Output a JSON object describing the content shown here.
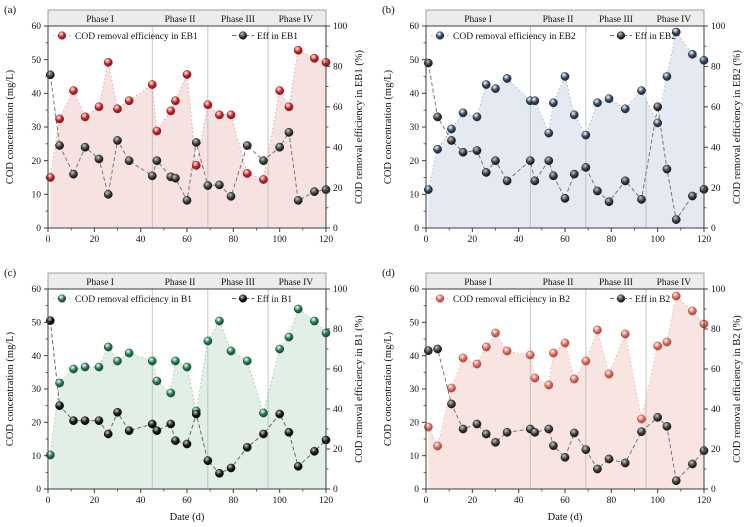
{
  "figure": {
    "xlabel": "Date (d)",
    "phase_labels": [
      "Phase I",
      "Phase II",
      "Phase III",
      "Phase IV"
    ],
    "phase_boundaries": [
      45,
      69,
      95
    ],
    "phase_label_centers": [
      22.5,
      57,
      82,
      107
    ],
    "band_fill": "#ececec",
    "band_edge": "#8a8a8a"
  },
  "chart_data": [
    {
      "type": "scatter-line-area",
      "panel": "(a)",
      "legend": [
        "COD removal efficiency in EB1",
        "Eff in EB1"
      ],
      "ylabel_left": "COD concentration (mg/L)",
      "ylabel_right": "COD removal efficiency in EB1 (%)",
      "xlabel": "",
      "show_xlabel": false,
      "xlim": [
        0,
        120
      ],
      "ylim_left": [
        0,
        60
      ],
      "ylim_right": [
        0,
        100
      ],
      "x_ticks": [
        0,
        20,
        40,
        60,
        80,
        100,
        120
      ],
      "y_left_ticks": [
        0,
        10,
        20,
        30,
        40,
        50,
        60
      ],
      "y_right_ticks": [
        0,
        20,
        40,
        60,
        80,
        100
      ],
      "x": [
        1,
        5,
        11,
        16,
        22,
        26,
        30,
        35,
        45,
        47,
        53,
        55,
        60,
        64,
        69,
        74,
        79,
        86,
        93,
        100,
        104,
        108,
        115,
        120
      ],
      "removal_efficiency_pct": [
        25,
        54,
        68,
        55,
        60,
        82,
        59,
        63,
        71,
        48,
        58,
        63,
        76,
        31,
        61,
        56,
        56,
        27,
        24,
        68,
        60,
        88,
        84,
        82
      ],
      "effluent_mg_L": [
        45.5,
        24.5,
        16,
        24,
        20.5,
        10,
        26,
        20,
        15.5,
        20,
        15.2,
        14.8,
        8.2,
        25.4,
        12.6,
        12.8,
        9.4,
        24.5,
        20,
        24,
        28.4,
        8.2,
        10.8,
        11.4
      ],
      "colors": {
        "marker": "#c92121",
        "marker_edge": "#801010",
        "line": "#dfabab",
        "fill": "#f7e2e2",
        "eff_marker": "#3f3f3f",
        "eff_line": "#6a6a6a"
      }
    },
    {
      "type": "scatter-line-area",
      "panel": "(b)",
      "legend": [
        "COD removal efficiency in EB2",
        "Eff in EB2"
      ],
      "ylabel_left": "COD concentration (mg/L)",
      "ylabel_right": "COD removal efficiency in EB2 (%)",
      "xlabel": "",
      "show_xlabel": false,
      "xlim": [
        0,
        120
      ],
      "ylim_left": [
        0,
        60
      ],
      "ylim_right": [
        0,
        100
      ],
      "x_ticks": [
        0,
        20,
        40,
        60,
        80,
        100,
        120
      ],
      "y_left_ticks": [
        0,
        10,
        20,
        30,
        40,
        50,
        60
      ],
      "y_right_ticks": [
        0,
        20,
        40,
        60,
        80,
        100
      ],
      "x": [
        1,
        5,
        11,
        16,
        22,
        26,
        30,
        35,
        45,
        47,
        53,
        55,
        60,
        64,
        69,
        74,
        79,
        86,
        93,
        100,
        104,
        108,
        115,
        120
      ],
      "removal_efficiency_pct": [
        19,
        39,
        49,
        57,
        55,
        71,
        69,
        74,
        63,
        63,
        47,
        62,
        75,
        56,
        46,
        62,
        64,
        59,
        68,
        52,
        75,
        97,
        86,
        83
      ],
      "effluent_mg_L": [
        49,
        33,
        26,
        22.5,
        23,
        16.5,
        20,
        14,
        20,
        14,
        20,
        15.5,
        8.8,
        16,
        18,
        11,
        7.8,
        14,
        8.5,
        36,
        17.5,
        2.5,
        9.5,
        11.5
      ],
      "colors": {
        "marker": "#31475f",
        "marker_edge": "#17222e",
        "line": "#aab8cd",
        "fill": "#e4e9f2",
        "eff_marker": "#3f3f3f",
        "eff_line": "#6a6a6a"
      }
    },
    {
      "type": "scatter-line-area",
      "panel": "(c)",
      "legend": [
        "COD removal efficiency in B1",
        "Eff in B1"
      ],
      "ylabel_left": "COD concentration (mg/L)",
      "ylabel_right": "COD removal efficiency in B1 (%)",
      "xlabel": "Date (d)",
      "show_xlabel": true,
      "xlim": [
        0,
        120
      ],
      "ylim_left": [
        0,
        60
      ],
      "ylim_right": [
        0,
        100
      ],
      "x_ticks": [
        0,
        20,
        40,
        60,
        80,
        100,
        120
      ],
      "y_left_ticks": [
        0,
        10,
        20,
        30,
        40,
        50,
        60
      ],
      "y_right_ticks": [
        0,
        20,
        40,
        60,
        80,
        100
      ],
      "x": [
        1,
        5,
        11,
        16,
        22,
        26,
        30,
        35,
        45,
        47,
        53,
        55,
        60,
        64,
        69,
        74,
        79,
        86,
        93,
        100,
        104,
        108,
        115,
        120
      ],
      "removal_efficiency_pct": [
        17,
        53,
        60,
        61,
        61,
        71,
        64,
        68,
        64,
        54,
        48,
        64,
        61,
        39,
        74,
        84,
        69,
        64,
        38,
        70,
        76,
        90,
        84,
        78
      ],
      "effluent_mg_L": [
        50.5,
        25,
        20.5,
        20.5,
        20.5,
        16.5,
        23,
        17.5,
        19.5,
        17.5,
        19.5,
        14.5,
        13.5,
        22.5,
        8.5,
        4.7,
        6.3,
        12.5,
        16.5,
        22.5,
        17,
        6.8,
        11.3,
        14.7
      ],
      "colors": {
        "marker": "#20794e",
        "marker_edge": "#0e4328",
        "line": "#9cc7ad",
        "fill": "#e1efe6",
        "eff_marker": "#141414",
        "eff_line": "#5a5a5a"
      }
    },
    {
      "type": "scatter-line-area",
      "panel": "(d)",
      "legend": [
        "COD removal efficiency in B2",
        "Eff in B2"
      ],
      "ylabel_left": "COD concentration (mg/L)",
      "ylabel_right": "COD removal efficiency in B2 (%)",
      "xlabel": "Date (d)",
      "show_xlabel": true,
      "xlim": [
        0,
        120
      ],
      "ylim_left": [
        0,
        60
      ],
      "ylim_right": [
        0,
        100
      ],
      "x_ticks": [
        0,
        20,
        40,
        60,
        80,
        100,
        120
      ],
      "y_left_ticks": [
        0,
        10,
        20,
        30,
        40,
        50,
        60
      ],
      "y_right_ticks": [
        0,
        20,
        40,
        60,
        80,
        100
      ],
      "x": [
        1,
        5,
        11,
        16,
        22,
        26,
        30,
        35,
        45,
        47,
        53,
        55,
        60,
        64,
        69,
        74,
        79,
        86,
        93,
        100,
        104,
        108,
        115,
        120
      ],
      "removal_efficiency_pct": [
        31,
        21.5,
        50.5,
        65.5,
        62.5,
        71,
        78,
        69,
        67,
        55.5,
        52,
        68,
        73,
        55,
        64,
        79.5,
        57.5,
        77.5,
        35,
        71.5,
        73.5,
        96.5,
        89,
        82.5
      ],
      "effluent_mg_L": [
        41.5,
        42,
        25.5,
        18,
        19.5,
        16.5,
        14,
        17,
        18,
        17,
        18,
        13,
        9.5,
        16.8,
        11.8,
        6,
        9,
        7.8,
        17.2,
        21.5,
        18.8,
        2.5,
        7.5,
        11.5
      ],
      "colors": {
        "marker": "#dc6a5b",
        "marker_edge": "#a83a2e",
        "line": "#edb9af",
        "fill": "#f8e5e1",
        "eff_marker": "#3f3f3f",
        "eff_line": "#6a6a6a"
      }
    }
  ]
}
